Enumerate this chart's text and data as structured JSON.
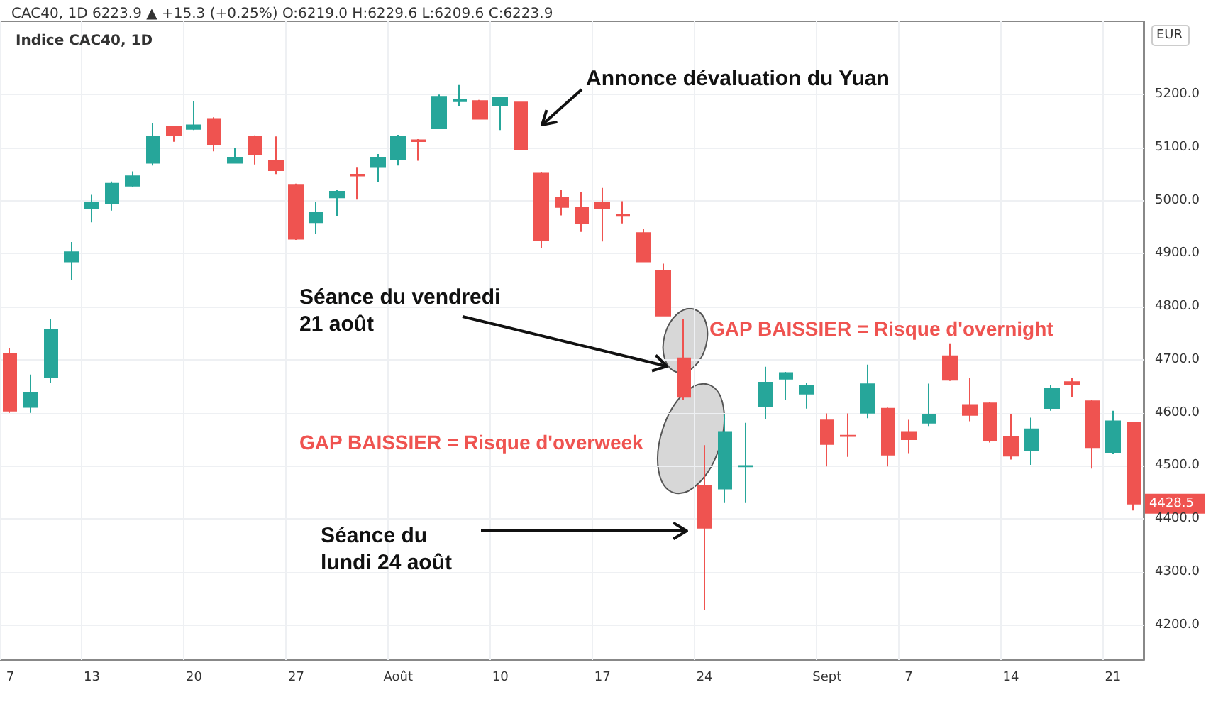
{
  "chart_data": {
    "type": "candlestick",
    "title": "Indice CAC40, 1D",
    "subtitle": "CAC40, 1D 6223.9 ▲ +15.3 (+0.25%) O:6219.0 H:6229.6 L:6209.6 C:6223.9",
    "categories": [
      "7",
      null,
      null,
      null,
      "13",
      null,
      null,
      null,
      null,
      "20",
      null,
      null,
      null,
      null,
      "27",
      null,
      null,
      null,
      null,
      "Août",
      null,
      null,
      null,
      null,
      "10",
      null,
      null,
      null,
      null,
      "17",
      null,
      null,
      null,
      null,
      "24",
      null,
      null,
      null,
      null,
      null,
      "Sept",
      null,
      null,
      null,
      "7",
      null,
      null,
      null,
      null,
      "14",
      null,
      null,
      null,
      null,
      "21",
      null
    ],
    "ohlc": [
      [
        4711,
        4722,
        4600,
        4604
      ],
      [
        4611,
        4672,
        4600,
        4638
      ],
      [
        4667,
        4776,
        4656,
        4757
      ],
      [
        4885,
        4922,
        4850,
        4903
      ],
      [
        4986,
        5011,
        4959,
        4997
      ],
      [
        4995,
        5036,
        4981,
        5032
      ],
      [
        5028,
        5055,
        5026,
        5046
      ],
      [
        5071,
        5146,
        5066,
        5120
      ],
      [
        5139,
        5141,
        5111,
        5124
      ],
      [
        5135,
        5187,
        5133,
        5142
      ],
      [
        5154,
        5157,
        5093,
        5106
      ],
      [
        5071,
        5100,
        5071,
        5081
      ],
      [
        5121,
        5123,
        5068,
        5087
      ],
      [
        5075,
        5121,
        5050,
        5057
      ],
      [
        5030,
        5032,
        4926,
        4928
      ],
      [
        4959,
        4997,
        4937,
        4977
      ],
      [
        5006,
        5021,
        4971,
        5017
      ],
      [
        5049,
        5062,
        5002,
        5047
      ],
      [
        5063,
        5088,
        5035,
        5081
      ],
      [
        5077,
        5124,
        5066,
        5120
      ],
      [
        5114,
        5116,
        5075,
        5112
      ],
      [
        5136,
        5200,
        5135,
        5196
      ],
      [
        5187,
        5218,
        5178,
        5191
      ],
      [
        5188,
        5190,
        5153,
        5154
      ],
      [
        5180,
        5196,
        5133,
        5194
      ],
      [
        5185,
        5186,
        5095,
        5097
      ],
      [
        5051,
        5053,
        4910,
        4925
      ],
      [
        5005,
        5021,
        4972,
        4988
      ],
      [
        4986,
        5017,
        4941,
        4957
      ],
      [
        4997,
        5024,
        4923,
        4986
      ],
      [
        4973,
        4999,
        4957,
        4971
      ],
      [
        4939,
        4947,
        4884,
        4885
      ],
      [
        4867,
        4881,
        4782,
        4783
      ],
      [
        4703,
        4776,
        4625,
        4630
      ],
      [
        4463,
        4539,
        4229,
        4383
      ],
      [
        4457,
        4597,
        4430,
        4564
      ],
      [
        4499,
        4581,
        4430,
        4500
      ],
      [
        4612,
        4687,
        4588,
        4657
      ],
      [
        4664,
        4677,
        4624,
        4675
      ],
      [
        4636,
        4657,
        4608,
        4651
      ],
      [
        4586,
        4599,
        4499,
        4541
      ],
      [
        4557,
        4599,
        4517,
        4556
      ],
      [
        4600,
        4691,
        4590,
        4654
      ],
      [
        4608,
        4610,
        4499,
        4521
      ],
      [
        4564,
        4587,
        4524,
        4550
      ],
      [
        4581,
        4655,
        4575,
        4597
      ],
      [
        4707,
        4731,
        4660,
        4662
      ],
      [
        4615,
        4666,
        4584,
        4596
      ],
      [
        4618,
        4620,
        4544,
        4548
      ],
      [
        4554,
        4597,
        4512,
        4519
      ],
      [
        4529,
        4591,
        4502,
        4569
      ],
      [
        4609,
        4653,
        4604,
        4645
      ],
      [
        4658,
        4666,
        4629,
        4654
      ],
      [
        4622,
        4624,
        4495,
        4535
      ],
      [
        4526,
        4604,
        4523,
        4584
      ],
      [
        4581,
        4582,
        4416,
        4428.5
      ]
    ],
    "colors": [
      "#ef5350",
      "#26a69a",
      "#26a69a",
      "#26a69a",
      "#26a69a",
      "#26a69a",
      "#26a69a",
      "#26a69a",
      "#ef5350",
      "#26a69a",
      "#ef5350",
      "#26a69a",
      "#ef5350",
      "#ef5350",
      "#ef5350",
      "#26a69a",
      "#26a69a",
      "#ef5350",
      "#26a69a",
      "#26a69a",
      "#ef5350",
      "#26a69a",
      "#26a69a",
      "#ef5350",
      "#26a69a",
      "#ef5350",
      "#ef5350",
      "#ef5350",
      "#ef5350",
      "#ef5350",
      "#ef5350",
      "#ef5350",
      "#ef5350",
      "#ef5350",
      "#ef5350",
      "#26a69a",
      "#26a69a",
      "#26a69a",
      "#26a69a",
      "#26a69a",
      "#ef5350",
      "#ef5350",
      "#26a69a",
      "#ef5350",
      "#ef5350",
      "#26a69a",
      "#ef5350",
      "#ef5350",
      "#ef5350",
      "#ef5350",
      "#26a69a",
      "#26a69a",
      "#ef5350",
      "#ef5350",
      "#26a69a",
      "#ef5350"
    ],
    "ylim": [
      4134,
      5338
    ],
    "yticks": [
      {
        "value": 4200,
        "label": "4200.0"
      },
      {
        "value": 4300,
        "label": "4300.0"
      },
      {
        "value": 4400,
        "label": "4400.0"
      },
      {
        "value": 4500,
        "label": "4500.0"
      },
      {
        "value": 4600,
        "label": "4600.0"
      },
      {
        "value": 4700,
        "label": "4700.0"
      },
      {
        "value": 4800,
        "label": "4800.0"
      },
      {
        "value": 4900,
        "label": "4900.0"
      },
      {
        "value": 5000,
        "label": "5000.0"
      },
      {
        "value": 5100,
        "label": "5100.0"
      },
      {
        "value": 5200,
        "label": "5200.0"
      }
    ],
    "grid": true,
    "annotations": [
      "Annonce dévaluation du Yuan",
      "Séance du vendredi\n21 août",
      "GAP BAISSIER = Risque d'overnight",
      "GAP BAISSIER = Risque d'overweek",
      "Séance du\nlundi 24 août",
      "EUR",
      "4428.5"
    ]
  }
}
